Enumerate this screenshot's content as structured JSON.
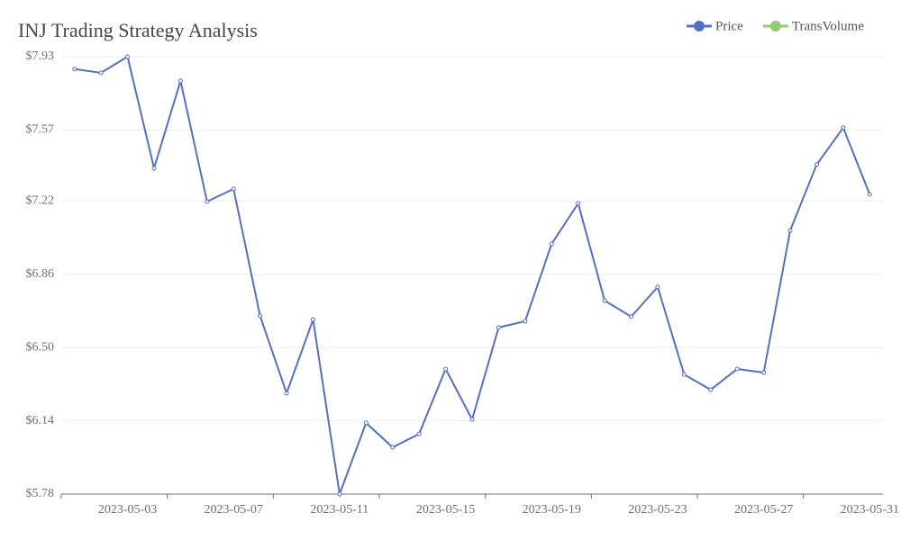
{
  "chart_data": {
    "type": "line",
    "title": "INJ Trading Strategy Analysis",
    "x": [
      "2023-05-01",
      "2023-05-02",
      "2023-05-03",
      "2023-05-04",
      "2023-05-05",
      "2023-05-06",
      "2023-05-07",
      "2023-05-08",
      "2023-05-09",
      "2023-05-10",
      "2023-05-11",
      "2023-05-12",
      "2023-05-13",
      "2023-05-14",
      "2023-05-15",
      "2023-05-16",
      "2023-05-17",
      "2023-05-18",
      "2023-05-19",
      "2023-05-20",
      "2023-05-21",
      "2023-05-22",
      "2023-05-23",
      "2023-05-24",
      "2023-05-25",
      "2023-05-26",
      "2023-05-27",
      "2023-05-28",
      "2023-05-29",
      "2023-05-30",
      "2023-05-31"
    ],
    "xticks": [
      "2023-05-03",
      "2023-05-07",
      "2023-05-11",
      "2023-05-15",
      "2023-05-19",
      "2023-05-23",
      "2023-05-27",
      "2023-05-31"
    ],
    "series": [
      {
        "name": "Price",
        "color": "#5470c6",
        "values": [
          7.869,
          7.851,
          7.93,
          7.382,
          7.811,
          7.218,
          7.28,
          6.656,
          6.276,
          6.638,
          5.78,
          6.13,
          6.01,
          6.076,
          6.395,
          6.147,
          6.599,
          6.63,
          7.01,
          7.209,
          6.731,
          6.652,
          6.798,
          6.368,
          6.293,
          6.395,
          6.377,
          7.076,
          7.4,
          7.581,
          7.253
        ]
      },
      {
        "name": "TransVolume",
        "color": "#91cc75",
        "values": [
          null,
          null,
          null,
          null,
          null,
          null,
          null,
          null,
          null,
          null,
          null,
          null,
          null,
          null,
          null,
          null,
          null,
          null,
          null,
          null,
          null,
          null,
          null,
          null,
          null,
          null,
          null,
          null,
          null,
          null,
          null
        ]
      }
    ],
    "ylim": [
      5.78,
      7.93
    ],
    "yticks": [
      {
        "value": 5.78,
        "label": "$5.78"
      },
      {
        "value": 6.14,
        "label": "$6.14"
      },
      {
        "value": 6.5,
        "label": "$6.50"
      },
      {
        "value": 6.86,
        "label": "$6.86"
      },
      {
        "value": 7.22,
        "label": "$7.22"
      },
      {
        "value": 7.57,
        "label": "$7.57"
      },
      {
        "value": 7.93,
        "label": "$7.93"
      }
    ],
    "grid": true,
    "legend": "top-right"
  }
}
